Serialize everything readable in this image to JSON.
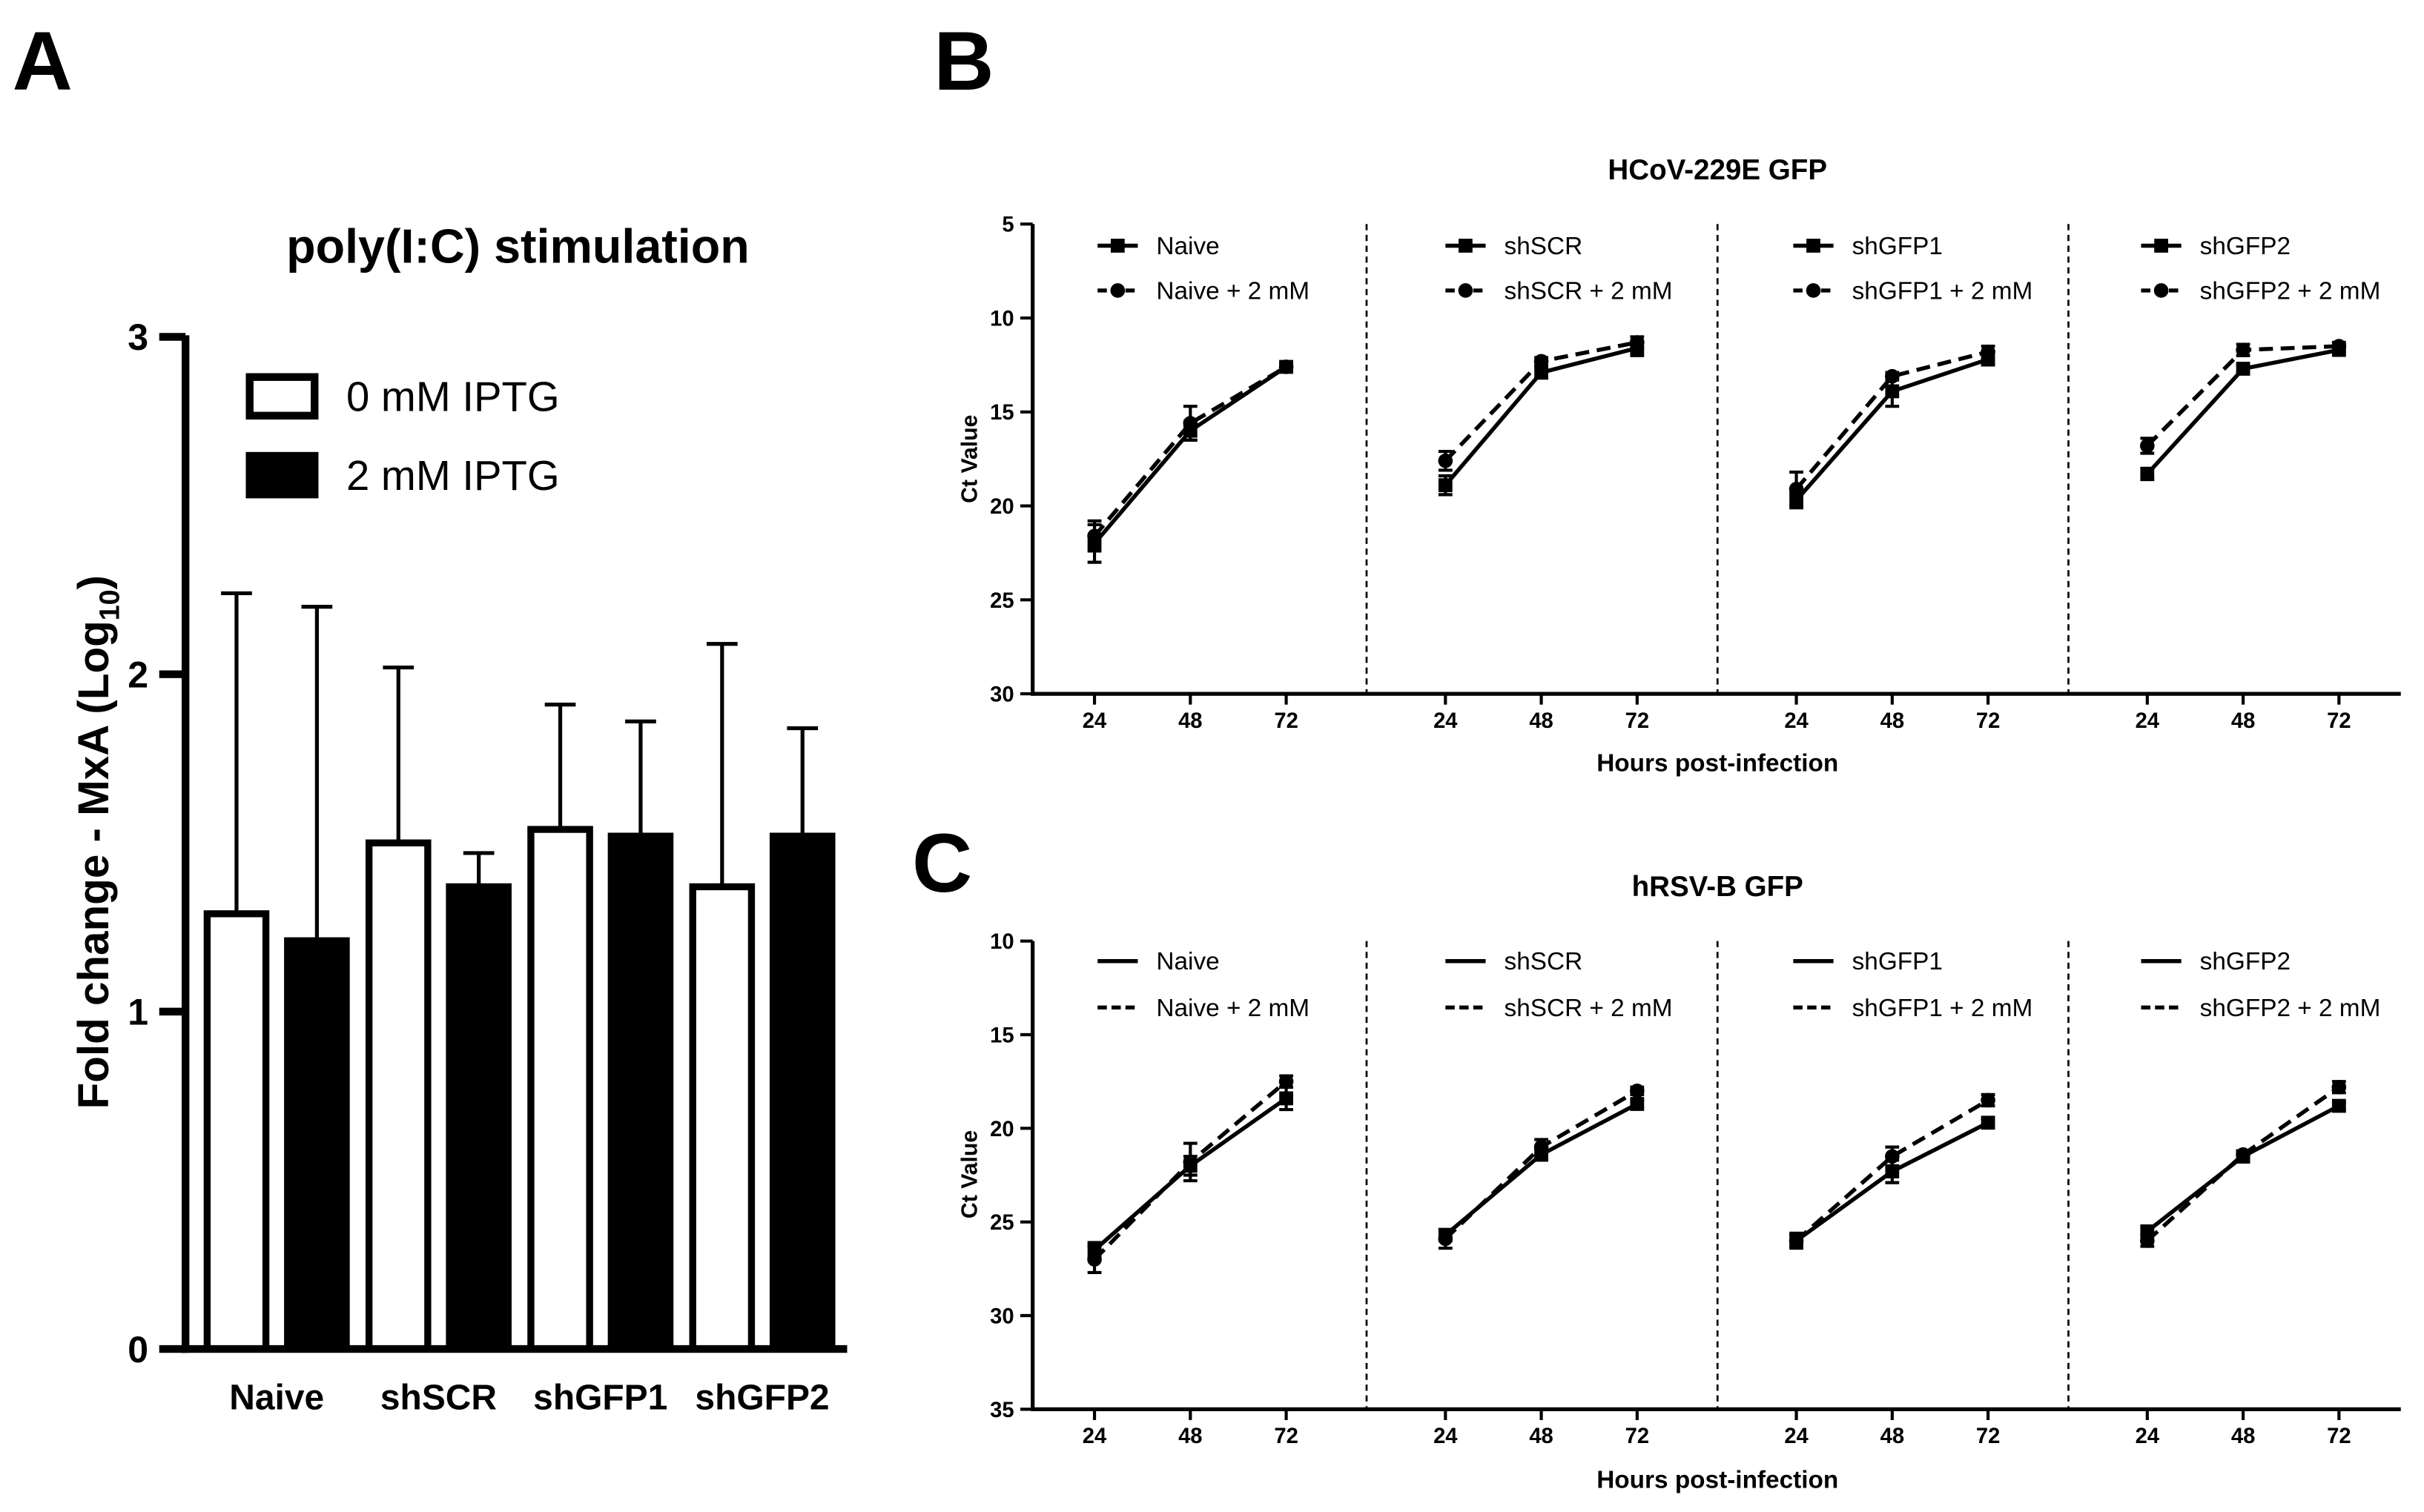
{
  "panel_labels": {
    "a": "A",
    "b": "B",
    "c": "C"
  },
  "chart_data": [
    {
      "type": "bar",
      "title": "poly(I:C) stimulation",
      "xlabel": "",
      "ylabel": "Fold change - MxA (Log",
      "ylabel_subscript": "10",
      "ylabel_suffix": ")",
      "ylim": [
        0,
        3
      ],
      "yticks": [
        0,
        1,
        2,
        3
      ],
      "categories": [
        "Naive",
        "shSCR",
        "shGFP1",
        "shGFP2"
      ],
      "series": [
        {
          "name": "0 mM IPTG",
          "fill": "#ffffff",
          "values": [
            1.29,
            1.5,
            1.54,
            1.37
          ],
          "error_upper": [
            2.24,
            2.02,
            1.91,
            2.09
          ]
        },
        {
          "name": "2 mM IPTG",
          "fill": "#000000",
          "values": [
            1.21,
            1.37,
            1.52,
            1.52
          ],
          "error_upper": [
            2.2,
            1.47,
            1.86,
            1.84
          ]
        }
      ]
    },
    {
      "type": "line",
      "title": "HCoV-229E GFP",
      "xlabel": "Hours post-infection",
      "ylabel": "Ct Value",
      "ylim": [
        5,
        30
      ],
      "y_inverted": true,
      "yticks": [
        5,
        10,
        15,
        20,
        25,
        30
      ],
      "x": [
        24,
        48,
        72
      ],
      "legend_markers": true,
      "groups": [
        {
          "series": [
            {
              "name": "Naive",
              "dashed": false,
              "marker_square": true,
              "values": [
                22.0,
                16.0,
                12.6
              ],
              "errors": [
                1.0,
                0.5,
                0.2
              ]
            },
            {
              "name": "Naive + 2 mM",
              "dashed": true,
              "marker_square": false,
              "values": [
                21.6,
                15.6,
                12.6
              ],
              "errors": [
                0.8,
                0.9,
                0.2
              ]
            }
          ]
        },
        {
          "series": [
            {
              "name": "shSCR",
              "dashed": false,
              "marker_square": true,
              "values": [
                18.9,
                12.9,
                11.6
              ],
              "errors": [
                0.5,
                0.3,
                0.4
              ]
            },
            {
              "name": "shSCR + 2 mM",
              "dashed": true,
              "marker_square": false,
              "values": [
                17.6,
                12.3,
                11.3
              ],
              "errors": [
                0.5,
                0.2,
                0.3
              ]
            }
          ]
        },
        {
          "series": [
            {
              "name": "shGFP1",
              "dashed": false,
              "marker_square": true,
              "values": [
                19.7,
                13.9,
                12.2
              ],
              "errors": [
                0.4,
                0.8,
                0.3
              ]
            },
            {
              "name": "shGFP1 + 2 mM",
              "dashed": true,
              "marker_square": false,
              "values": [
                19.1,
                13.1,
                11.8
              ],
              "errors": [
                0.9,
                0.2,
                0.3
              ]
            }
          ]
        },
        {
          "series": [
            {
              "name": "shGFP2",
              "dashed": false,
              "marker_square": true,
              "values": [
                18.3,
                12.7,
                11.7
              ],
              "errors": [
                0.3,
                0.2,
                0.2
              ]
            },
            {
              "name": "shGFP2 + 2 mM",
              "dashed": true,
              "marker_square": false,
              "values": [
                16.8,
                11.7,
                11.5
              ],
              "errors": [
                0.4,
                0.3,
                0.2
              ]
            }
          ]
        }
      ]
    },
    {
      "type": "line",
      "title": "hRSV-B GFP",
      "xlabel": "Hours post-infection",
      "ylabel": "Ct Value",
      "ylim": [
        10,
        35
      ],
      "y_inverted": true,
      "yticks": [
        10,
        15,
        20,
        25,
        30,
        35
      ],
      "x": [
        24,
        48,
        72
      ],
      "legend_markers": false,
      "groups": [
        {
          "series": [
            {
              "name": "Naive",
              "dashed": false,
              "marker_square": true,
              "values": [
                26.5,
                22.0,
                18.4
              ],
              "errors": [
                0.4,
                0.5,
                0.6
              ]
            },
            {
              "name": "Naive + 2 mM",
              "dashed": true,
              "marker_square": false,
              "values": [
                27.0,
                21.8,
                17.5
              ],
              "errors": [
                0.7,
                1.0,
                0.3
              ]
            }
          ]
        },
        {
          "series": [
            {
              "name": "shSCR",
              "dashed": false,
              "marker_square": true,
              "values": [
                25.7,
                21.4,
                18.7
              ],
              "errors": [
                0.3,
                0.3,
                0.2
              ]
            },
            {
              "name": "shSCR + 2 mM",
              "dashed": true,
              "marker_square": false,
              "values": [
                25.9,
                21.0,
                18.0
              ],
              "errors": [
                0.5,
                0.4,
                0.2
              ]
            }
          ]
        },
        {
          "series": [
            {
              "name": "shGFP1",
              "dashed": false,
              "marker_square": true,
              "values": [
                26.0,
                22.3,
                19.7
              ],
              "errors": [
                0.3,
                0.6,
                0.2
              ]
            },
            {
              "name": "shGFP1 + 2 mM",
              "dashed": true,
              "marker_square": false,
              "values": [
                26.0,
                21.5,
                18.5
              ],
              "errors": [
                0.4,
                0.5,
                0.3
              ]
            }
          ]
        },
        {
          "series": [
            {
              "name": "shGFP2",
              "dashed": false,
              "marker_square": true,
              "values": [
                25.5,
                21.5,
                18.8
              ],
              "errors": [
                0.2,
                0.3,
                0.2
              ]
            },
            {
              "name": "shGFP2 + 2 mM",
              "dashed": true,
              "marker_square": false,
              "values": [
                26.0,
                21.4,
                17.8
              ],
              "errors": [
                0.3,
                0.2,
                0.3
              ]
            }
          ]
        }
      ]
    }
  ]
}
